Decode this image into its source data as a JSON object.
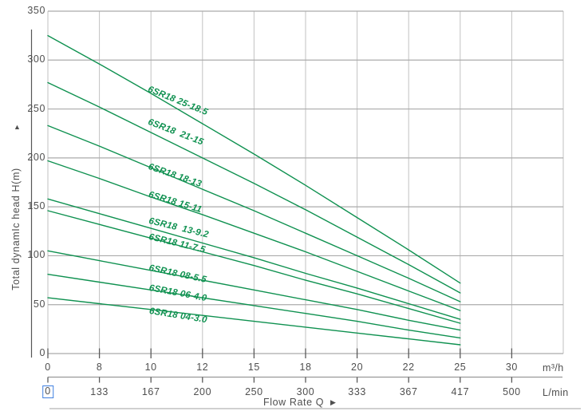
{
  "chart_data": {
    "type": "line",
    "title": "",
    "grid": true,
    "legend_position": "inline-curve-labels",
    "y_axis": {
      "label": "Total dynamIc head H(m)",
      "ticks": [
        "350",
        "300",
        "250",
        "200",
        "150",
        "100",
        "50",
        "0"
      ],
      "range": [
        0,
        350
      ]
    },
    "x_axis": {
      "label": "Flow Rate Q",
      "rows": [
        {
          "unit": "m³/h",
          "ticks": [
            "0",
            "8",
            "10",
            "12",
            "15",
            "18",
            "20",
            "22",
            "25",
            "30"
          ]
        },
        {
          "unit": "L/min",
          "ticks": [
            "0",
            "133",
            "167",
            "200",
            "250",
            "300",
            "333",
            "367",
            "417",
            "500"
          ],
          "highlighted_tick_index": 0,
          "highlighted_value": "0"
        }
      ]
    },
    "flow_points_m3h": [
      0,
      8,
      10,
      12,
      15,
      18,
      20,
      22,
      25
    ],
    "series": [
      {
        "label": "6SR18 25-18.5",
        "head_m": [
          325,
          296,
          266,
          235,
          204,
          172,
          139,
          106,
          72
        ]
      },
      {
        "label": "6SR18  21-15",
        "head_m": [
          277,
          252,
          226,
          200,
          174,
          147,
          119,
          91,
          62
        ]
      },
      {
        "label": "6SR18 18-13",
        "head_m": [
          233,
          212,
          190,
          168,
          146,
          123,
          100,
          77,
          53
        ]
      },
      {
        "label": "6SR18 15-11",
        "head_m": [
          197,
          179,
          160,
          142,
          123,
          104,
          84,
          64,
          44
        ]
      },
      {
        "label": "6SR18  13-9.2",
        "head_m": [
          158,
          143,
          128,
          113,
          98,
          82,
          67,
          51,
          35
        ]
      },
      {
        "label": "6SR18 11-7.5",
        "head_m": [
          146,
          132,
          118,
          104,
          90,
          75,
          61,
          46,
          31
        ]
      },
      {
        "label": "6SR18 08-5.5",
        "head_m": [
          105,
          95,
          85,
          75,
          65,
          55,
          45,
          34,
          24
        ]
      },
      {
        "label": "6SR18 06-4.0",
        "head_m": [
          81,
          73,
          65,
          57,
          49,
          41,
          33,
          24,
          16
        ]
      },
      {
        "label": "6SR18 04-3.0",
        "head_m": [
          57,
          51,
          45,
          39,
          33,
          27,
          21,
          15,
          9
        ]
      }
    ],
    "colors": {
      "curve": "#0f9150",
      "grid_vertical": "#c2c2c2",
      "grid_horizontal": "#ababab",
      "axis_text": "#4f4f4f",
      "highlight_border": "#3e7fe0"
    }
  },
  "icons": {
    "y_axis_arrow": "▲",
    "x_axis_arrow": "▶"
  }
}
